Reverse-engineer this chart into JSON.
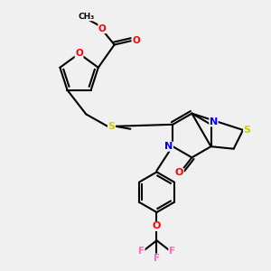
{
  "bg_color": "#f0f0f0",
  "bond_color": "#000000",
  "atom_colors": {
    "O": "#ff0000",
    "N": "#0000ff",
    "S": "#cccc00",
    "F": "#ff69b4",
    "C": "#000000"
  },
  "title": ""
}
